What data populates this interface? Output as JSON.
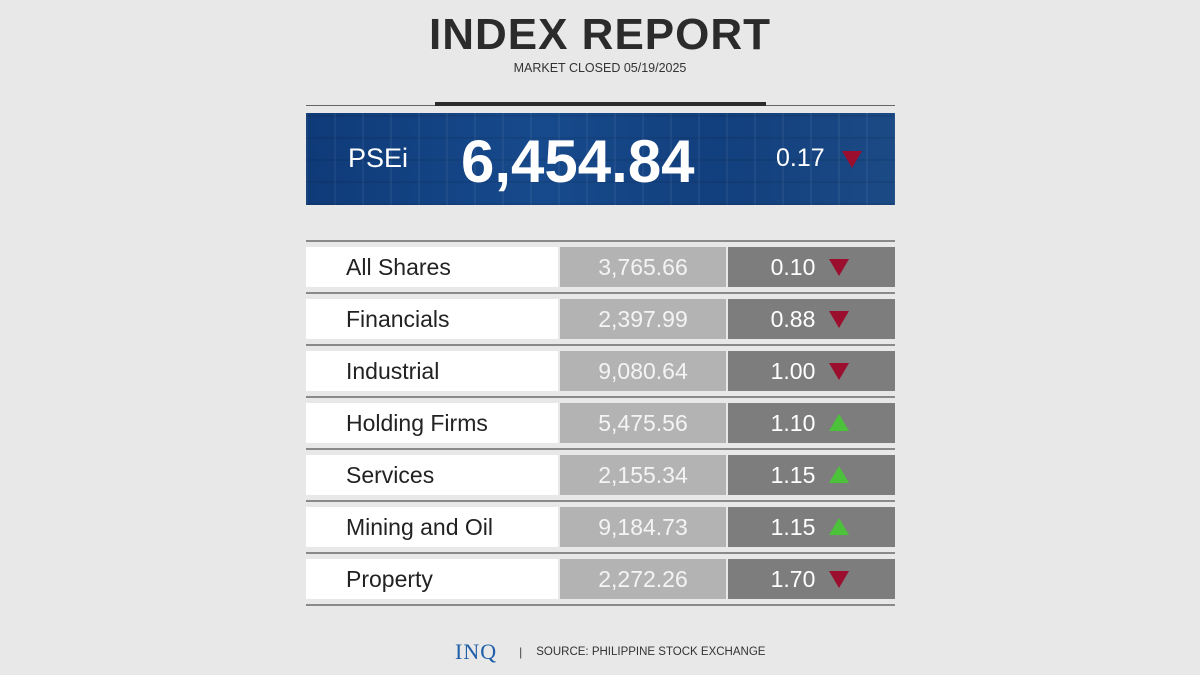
{
  "header": {
    "title": "INDEX REPORT",
    "subtitle": "MARKET CLOSED 05/19/2025"
  },
  "psei": {
    "label": "PSEi",
    "value": "6,454.84",
    "change": "0.17",
    "direction": "down"
  },
  "indices": [
    {
      "name": "All Shares",
      "value": "3,765.66",
      "change": "0.10",
      "direction": "down"
    },
    {
      "name": "Financials",
      "value": "2,397.99",
      "change": "0.88",
      "direction": "down"
    },
    {
      "name": "Industrial",
      "value": "9,080.64",
      "change": "1.00",
      "direction": "down"
    },
    {
      "name": "Holding Firms",
      "value": "5,475.56",
      "change": "1.10",
      "direction": "up"
    },
    {
      "name": "Services",
      "value": "2,155.34",
      "change": "1.15",
      "direction": "up"
    },
    {
      "name": "Mining and Oil",
      "value": "9,184.73",
      "change": "1.15",
      "direction": "up"
    },
    {
      "name": "Property",
      "value": "2,272.26",
      "change": "1.70",
      "direction": "down"
    }
  ],
  "colors": {
    "down": "#9b0e2e",
    "up": "#4cc23a",
    "banner": "#174a8c"
  },
  "footer": {
    "logo": "INQ",
    "separator": "|",
    "source": "SOURCE: PHILIPPINE STOCK EXCHANGE"
  }
}
